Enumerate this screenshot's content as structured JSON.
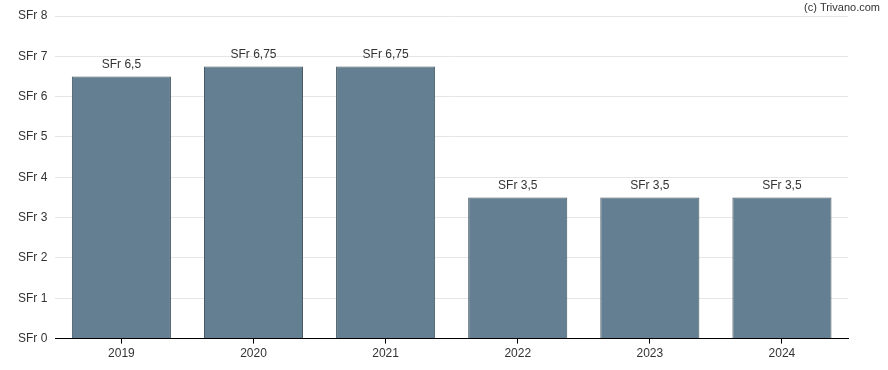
{
  "chart_data": {
    "type": "bar",
    "annotations": [
      "(c) Trivano.com"
    ],
    "categories": [
      "2019",
      "2020",
      "2021",
      "2022",
      "2023",
      "2024"
    ],
    "values": [
      6.5,
      6.75,
      6.75,
      3.5,
      3.5,
      3.5
    ],
    "value_labels": [
      "SFr 6,5",
      "SFr 6,75",
      "SFr 6,75",
      "SFr 3,5",
      "SFr 3,5",
      "SFr 3,5"
    ],
    "data_labels": true,
    "color": "#647f91",
    "ylim": [
      0,
      8
    ],
    "yticks": [
      {
        "value": 0,
        "label": "SFr 0"
      },
      {
        "value": 1,
        "label": "SFr 1"
      },
      {
        "value": 2,
        "label": "SFr 2"
      },
      {
        "value": 3,
        "label": "SFr 3"
      },
      {
        "value": 4,
        "label": "SFr 4"
      },
      {
        "value": 5,
        "label": "SFr 5"
      },
      {
        "value": 6,
        "label": "SFr 6"
      },
      {
        "value": 7,
        "label": "SFr 7"
      },
      {
        "value": 8,
        "label": "SFr 8"
      }
    ],
    "grid": true
  }
}
